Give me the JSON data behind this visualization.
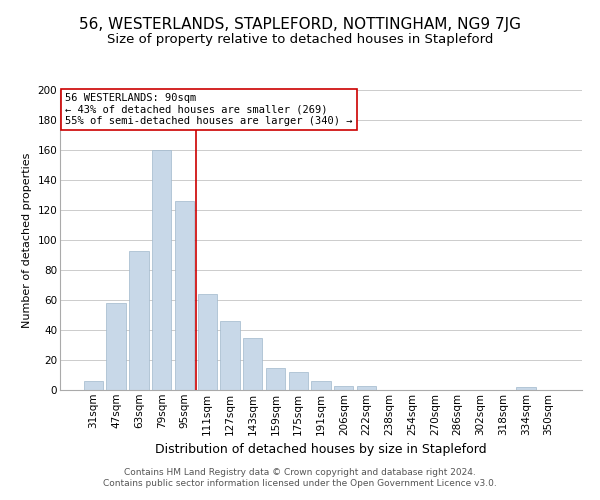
{
  "title": "56, WESTERLANDS, STAPLEFORD, NOTTINGHAM, NG9 7JG",
  "subtitle": "Size of property relative to detached houses in Stapleford",
  "xlabel": "Distribution of detached houses by size in Stapleford",
  "ylabel": "Number of detached properties",
  "footer_line1": "Contains HM Land Registry data © Crown copyright and database right 2024.",
  "footer_line2": "Contains public sector information licensed under the Open Government Licence v3.0.",
  "bar_labels": [
    "31sqm",
    "47sqm",
    "63sqm",
    "79sqm",
    "95sqm",
    "111sqm",
    "127sqm",
    "143sqm",
    "159sqm",
    "175sqm",
    "191sqm",
    "206sqm",
    "222sqm",
    "238sqm",
    "254sqm",
    "270sqm",
    "286sqm",
    "302sqm",
    "318sqm",
    "334sqm",
    "350sqm"
  ],
  "bar_values": [
    6,
    58,
    93,
    160,
    126,
    64,
    46,
    35,
    15,
    12,
    6,
    3,
    3,
    0,
    0,
    0,
    0,
    0,
    0,
    2,
    0
  ],
  "bar_color": "#c8d8e8",
  "bar_edge_color": "#a0b8cc",
  "highlight_bar_index": 4,
  "highlight_line_color": "#cc0000",
  "annotation_title": "56 WESTERLANDS: 90sqm",
  "annotation_line1": "← 43% of detached houses are smaller (269)",
  "annotation_line2": "55% of semi-detached houses are larger (340) →",
  "annotation_box_edge_color": "#cc0000",
  "annotation_box_face_color": "#ffffff",
  "ylim": [
    0,
    200
  ],
  "yticks": [
    0,
    20,
    40,
    60,
    80,
    100,
    120,
    140,
    160,
    180,
    200
  ],
  "background_color": "#ffffff",
  "grid_color": "#cccccc",
  "title_fontsize": 11,
  "subtitle_fontsize": 9.5,
  "xlabel_fontsize": 9,
  "ylabel_fontsize": 8,
  "tick_fontsize": 7.5,
  "annotation_fontsize": 7.5,
  "footer_fontsize": 6.5
}
